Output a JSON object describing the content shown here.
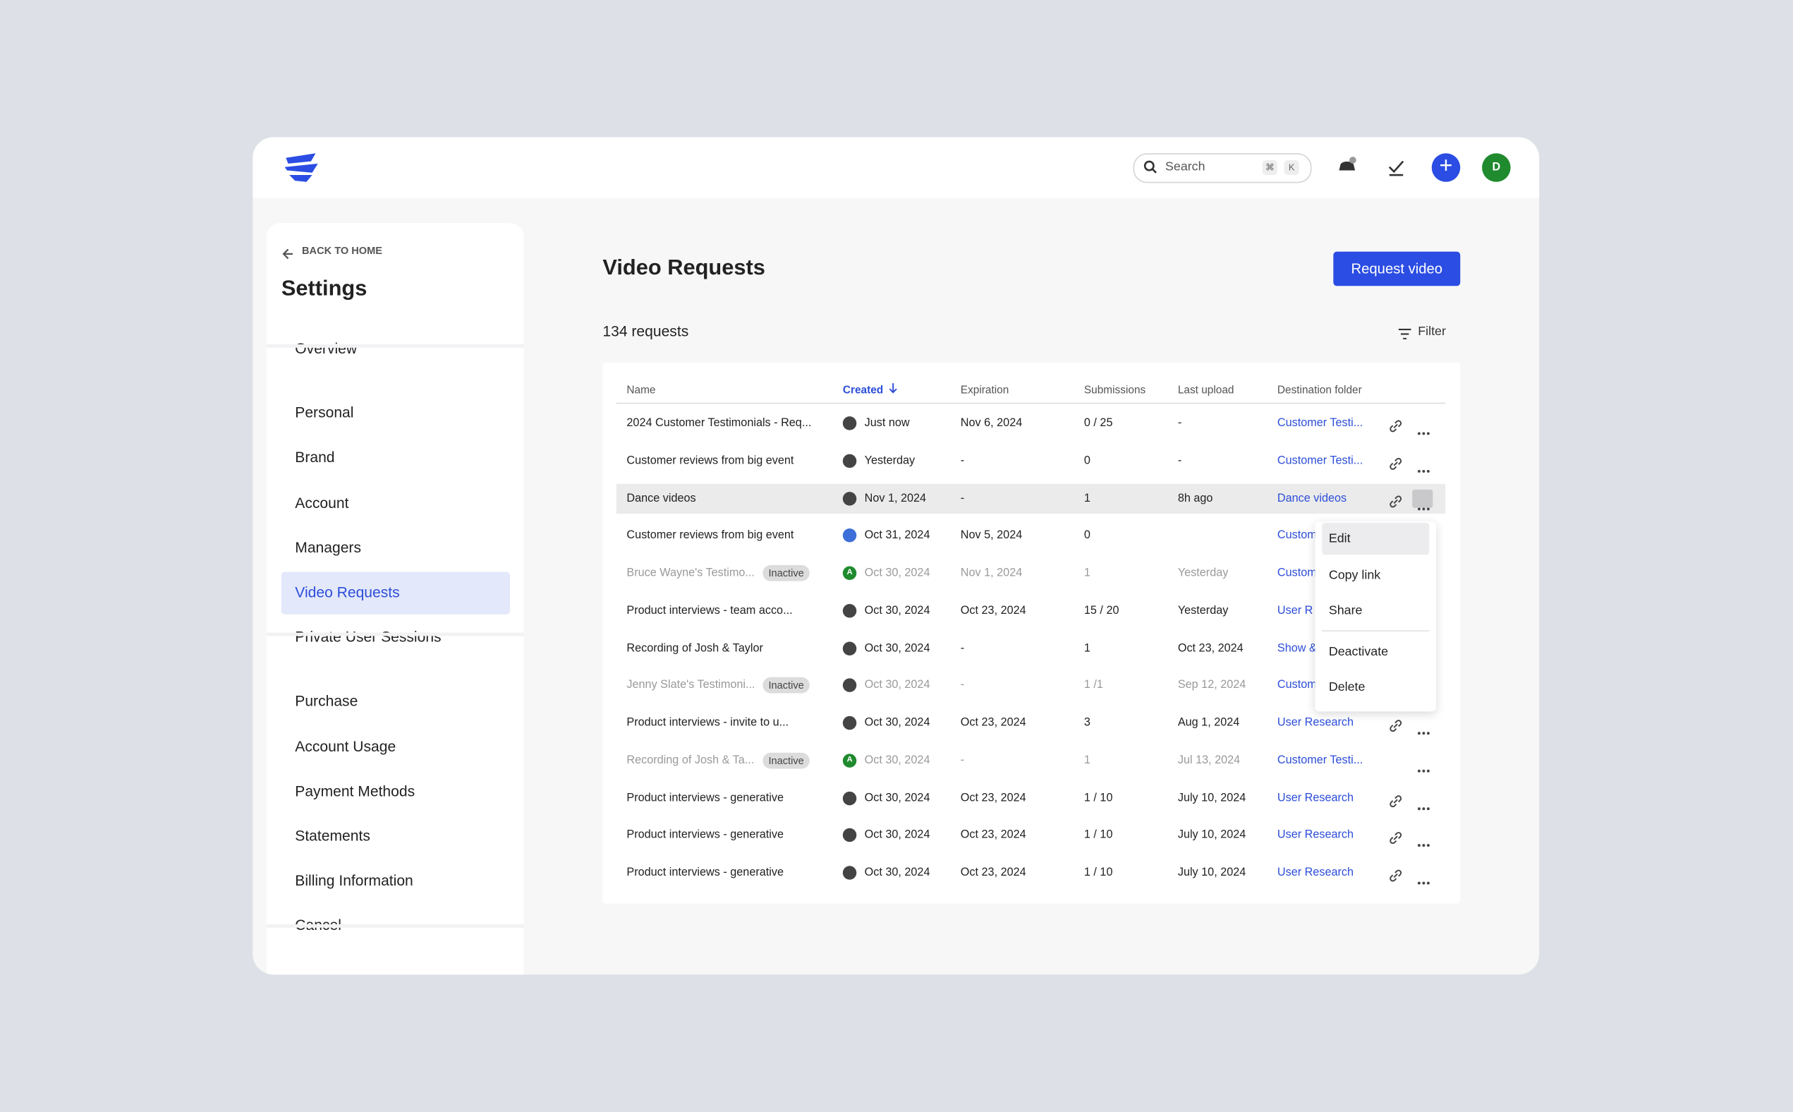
{
  "header": {
    "search_placeholder": "Search",
    "shortcut_keys": [
      "⌘",
      "K"
    ],
    "user_initial": "D"
  },
  "sidebar": {
    "back_label": "BACK TO HOME",
    "title": "Settings",
    "groups": [
      [
        "Overview"
      ],
      [
        "Personal",
        "Brand",
        "Account",
        "Managers",
        "Video Requests",
        "Private User Sessions"
      ],
      [
        "Purchase",
        "Account Usage",
        "Payment Methods",
        "Statements",
        "Billing Information",
        "Cancel"
      ]
    ],
    "active": "Video Requests"
  },
  "main": {
    "title": "Video Requests",
    "primary_button": "Request video",
    "count_label": "134 requests",
    "filter_label": "Filter",
    "table": {
      "columns": [
        "Name",
        "Created",
        "Expiration",
        "Submissions",
        "Last upload",
        "Destination folder"
      ],
      "rows": [
        {
          "name": "2024 Customer Testimonials - Req...",
          "created": "Just now",
          "expiration": "Nov 6, 2024",
          "submissions": "0 / 25",
          "last_upload": "-",
          "folder": "Customer Testi..."
        },
        {
          "name": "Customer reviews from big event",
          "created": "Yesterday",
          "expiration": "-",
          "submissions": "0",
          "last_upload": "-",
          "folder": "Customer Testi..."
        },
        {
          "name": "Dance videos",
          "created": "Nov 1, 2024",
          "expiration": "-",
          "submissions": "1",
          "last_upload": "8h ago",
          "folder": "Dance videos"
        },
        {
          "name": "Customer reviews from big event",
          "created": "Oct 31, 2024",
          "expiration": "Nov 5, 2024",
          "submissions": "0",
          "last_upload": null,
          "folder": "Custom"
        },
        {
          "name": "Bruce Wayne's Testimo...",
          "status": "Inactive",
          "avatar": "A",
          "created": "Oct 30, 2024",
          "expiration": "Nov 1, 2024",
          "submissions": "1",
          "last_upload": "Yesterday",
          "folder": "Custom"
        },
        {
          "name": "Product interviews - team acco...",
          "created": "Oct 30, 2024",
          "expiration": "Oct 23, 2024",
          "submissions": "15 / 20",
          "last_upload": "Yesterday",
          "folder": "User R"
        },
        {
          "name": "Recording of Josh & Taylor",
          "created": "Oct 30, 2024",
          "expiration": "-",
          "submissions": "1",
          "last_upload": "Oct 23, 2024",
          "folder": "Show &"
        },
        {
          "name": "Jenny Slate's Testimoni...",
          "status": "Inactive",
          "created": "Oct 30, 2024",
          "expiration": "-",
          "submissions": "1 /1",
          "last_upload": "Sep 12, 2024",
          "folder": "Custom"
        },
        {
          "name": "Product interviews - invite to u...",
          "created": "Oct 30, 2024",
          "expiration": "Oct 23, 2024",
          "submissions": "3",
          "last_upload": "Aug 1, 2024",
          "folder": "User Research"
        },
        {
          "name": "Recording of Josh & Ta...",
          "status": "Inactive",
          "avatar": "A",
          "created": "Oct 30, 2024",
          "expiration": "-",
          "submissions": "1",
          "last_upload": "Jul 13, 2024",
          "folder": "Customer Testi..."
        },
        {
          "name": "Product interviews - generative",
          "created": "Oct 30, 2024",
          "expiration": "Oct 23, 2024",
          "submissions": "1 / 10",
          "last_upload": "July 10, 2024",
          "folder": "User Research"
        },
        {
          "name": "Product interviews - generative",
          "created": "Oct 30, 2024",
          "expiration": "Oct 23, 2024",
          "submissions": "1 / 10",
          "last_upload": "July 10, 2024",
          "folder": "User Research"
        },
        {
          "name": "Product interviews - generative",
          "created": "Oct 30, 2024",
          "expiration": "Oct 23, 2024",
          "submissions": "1 / 10",
          "last_upload": "July 10, 2024",
          "folder": "User Research"
        }
      ]
    },
    "menu": {
      "items": [
        "Edit",
        "Copy link",
        "Share",
        "Deactivate",
        "Delete"
      ]
    }
  }
}
